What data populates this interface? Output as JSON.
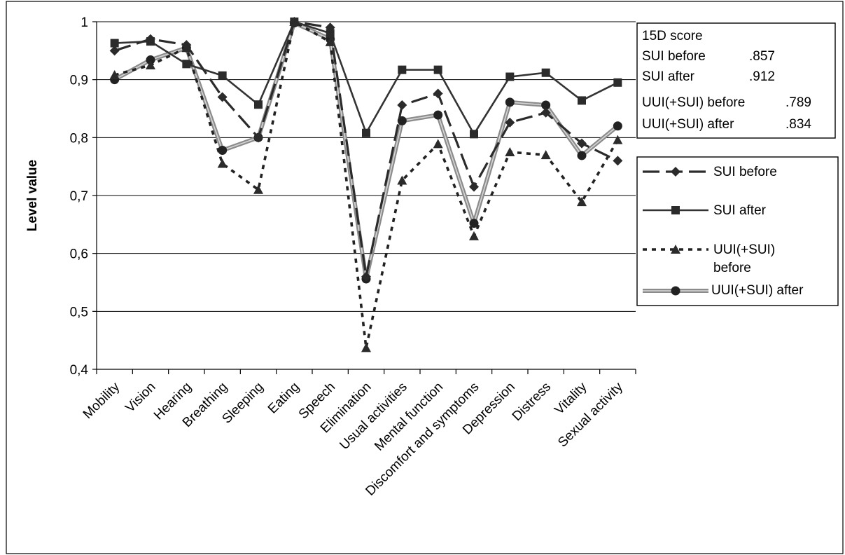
{
  "chart_data": {
    "type": "line",
    "title": "",
    "xlabel": "",
    "ylabel": "Level value",
    "ylim": [
      0.4,
      1.0
    ],
    "yticks": [
      0.4,
      0.5,
      0.6,
      0.7,
      0.8,
      0.9,
      1.0
    ],
    "ytick_labels": [
      "0,4",
      "0,5",
      "0,6",
      "0,7",
      "0,8",
      "0,9",
      "1"
    ],
    "grid": "horizontal",
    "legend_position": "right",
    "categories": [
      "Mobility",
      "Vision",
      "Hearing",
      "Breathing",
      "Sleeping",
      "Eating",
      "Speech",
      "Elimination",
      "Usual activities",
      "Mental function",
      "Discomfort and symptoms",
      "Depression",
      "Distress",
      "Vitality",
      "Sexual activity"
    ],
    "series": [
      {
        "name": "SUI before",
        "marker": "diamond",
        "line": "long-dash",
        "color": "#2b2b2b",
        "values": [
          0.95,
          0.97,
          0.96,
          0.87,
          0.8,
          1.0,
          0.99,
          0.56,
          0.856,
          0.876,
          0.715,
          0.826,
          0.843,
          0.79,
          0.76
        ]
      },
      {
        "name": "SUI after",
        "marker": "square",
        "line": "solid",
        "color": "#333333",
        "values": [
          0.963,
          0.966,
          0.927,
          0.907,
          0.857,
          1.0,
          0.98,
          0.808,
          0.917,
          0.917,
          0.806,
          0.905,
          0.912,
          0.864,
          0.895
        ]
      },
      {
        "name": "UUI(+SUI) before",
        "legend_lines": [
          "UUI(+SUI)",
          "before"
        ],
        "marker": "triangle",
        "line": "dotted",
        "color": "#222222",
        "values": [
          0.908,
          0.925,
          0.955,
          0.755,
          0.71,
          1.0,
          0.965,
          0.437,
          0.726,
          0.789,
          0.63,
          0.775,
          0.77,
          0.689,
          0.796
        ]
      },
      {
        "name": "UUI(+SUI) after",
        "marker": "circle",
        "line": "gray-double",
        "color": "#9a9a9a",
        "values": [
          0.9,
          0.934,
          0.955,
          0.778,
          0.8,
          0.998,
          0.97,
          0.556,
          0.829,
          0.839,
          0.652,
          0.861,
          0.856,
          0.769,
          0.82
        ]
      }
    ],
    "score_box": {
      "title": "15D score",
      "rows": [
        {
          "label": "SUI before",
          "value": ".857"
        },
        {
          "label": "SUI after",
          "value": ".912"
        },
        {
          "label": "UUI(+SUI) before",
          "value": ".789"
        },
        {
          "label": "UUI(+SUI) after",
          "value": ".834"
        }
      ]
    }
  }
}
